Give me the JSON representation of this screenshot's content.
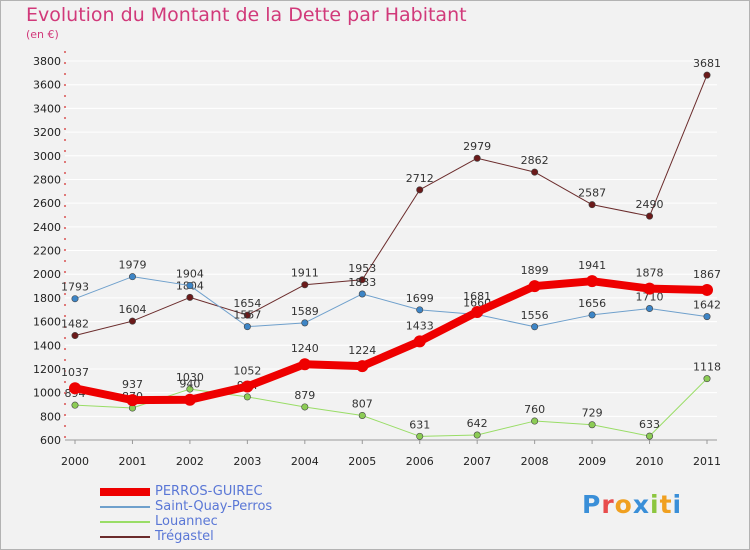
{
  "title": "Evolution du Montant de la Dette par Habitant",
  "unit": "(en €)",
  "logo": {
    "text": "Proxiti",
    "letters": [
      {
        "ch": "P",
        "color": "#3a8fd8"
      },
      {
        "ch": "r",
        "color": "#e84c4c"
      },
      {
        "ch": "o",
        "color": "#f0a020"
      },
      {
        "ch": "x",
        "color": "#3a8fd8"
      },
      {
        "ch": "i",
        "color": "#8cc63f"
      },
      {
        "ch": "t",
        "color": "#f0a020"
      },
      {
        "ch": "i",
        "color": "#3a8fd8"
      }
    ]
  },
  "chart_data": {
    "type": "line",
    "title": "Evolution du Montant de la Dette par Habitant",
    "ylabel": "(en €)",
    "x": [
      "2000",
      "2001",
      "2002",
      "2003",
      "2004",
      "2005",
      "2006",
      "2007",
      "2008",
      "2009",
      "2010",
      "2011"
    ],
    "ylim": [
      600,
      3800
    ],
    "yticks": [
      600,
      800,
      1000,
      1200,
      1400,
      1600,
      1800,
      2000,
      2200,
      2400,
      2600,
      2800,
      3000,
      3200,
      3400,
      3600,
      3800
    ],
    "grid": true,
    "legend_position": "bottom-left",
    "series": [
      {
        "name": "Trégastel",
        "color": "#6b2c2c",
        "marker": "#6b1a1a",
        "width": 1,
        "values": [
          1482,
          1604,
          1804,
          1654,
          1911,
          1953,
          2712,
          2979,
          2862,
          2587,
          2490,
          3681
        ]
      },
      {
        "name": "Saint-Quay-Perros",
        "color": "#6fa0cc",
        "marker": "#3d85c6",
        "width": 1,
        "values": [
          1793,
          1979,
          1904,
          1557,
          1589,
          1833,
          1699,
          1660,
          1556,
          1656,
          1710,
          1642
        ]
      },
      {
        "name": "Louannec",
        "color": "#99dd66",
        "marker": "#8ccc55",
        "width": 1,
        "values": [
          894,
          870,
          1030,
          964,
          879,
          807,
          631,
          642,
          760,
          729,
          633,
          1118
        ]
      },
      {
        "name": "PERROS-GUIREC",
        "color": "#ee0000",
        "marker": "#ee0000",
        "width": 8,
        "values": [
          1037,
          937,
          940,
          1052,
          1240,
          1224,
          1433,
          1681,
          1899,
          1941,
          1878,
          1867
        ]
      }
    ]
  },
  "legend": [
    {
      "name": "PERROS-GUIREC",
      "color": "#ee0000",
      "width": 8
    },
    {
      "name": "Saint-Quay-Perros",
      "color": "#6fa0cc",
      "width": 2
    },
    {
      "name": "Louannec",
      "color": "#99dd66",
      "width": 2
    },
    {
      "name": "Trégastel",
      "color": "#6b2c2c",
      "width": 2
    }
  ]
}
